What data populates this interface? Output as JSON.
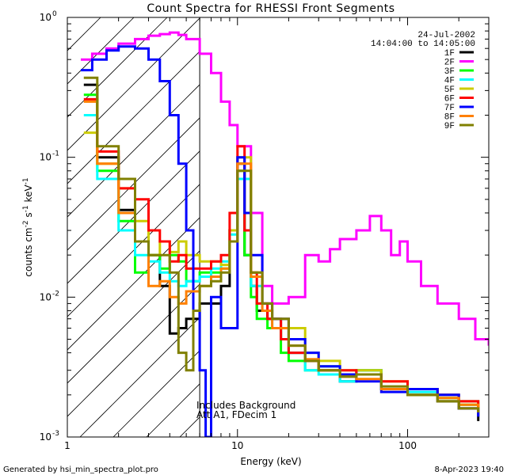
{
  "chart_data": {
    "type": "line",
    "title": "Count Spectra for RHESSI Front Segments",
    "xlabel": "Energy (keV)",
    "ylabel": "counts cm^-2 s^-1 keV^-1",
    "ylabel_parts": [
      "counts cm",
      "-2",
      " s",
      "-1",
      " keV",
      "-1"
    ],
    "xscale": "log",
    "yscale": "log",
    "xlim": [
      1,
      300
    ],
    "ylim": [
      0.001,
      1.0
    ],
    "x_ticks": [
      {
        "value": 1,
        "label": "1"
      },
      {
        "value": 10,
        "label": "10"
      },
      {
        "value": 100,
        "label": "100"
      }
    ],
    "y_ticks": [
      {
        "value": 1.0,
        "base": "10",
        "exp": "0"
      },
      {
        "value": 0.1,
        "base": "10",
        "exp": "-1"
      },
      {
        "value": 0.01,
        "base": "10",
        "exp": "-2"
      },
      {
        "value": 0.001,
        "base": "10",
        "exp": "-3"
      }
    ],
    "date": "24-Jul-2002",
    "time_range": "14:04:00 to 14:05:00",
    "attenuator_edge_keV": 6,
    "shaded_region": [
      1,
      6
    ],
    "annotations": [
      "Includes Background",
      "Att A1, FDecim 1"
    ],
    "legend_position": "top-right",
    "series": [
      {
        "name": "1F",
        "color": "#000000",
        "x": [
          1.25,
          1.5,
          2,
          2.5,
          3,
          3.5,
          4,
          4.5,
          5,
          5.5,
          6,
          7,
          8,
          9,
          10,
          11,
          12,
          13,
          15,
          18,
          20,
          25,
          30,
          40,
          50,
          70,
          100,
          150,
          200,
          260
        ],
        "y": [
          0.33,
          0.1,
          0.042,
          0.025,
          0.02,
          0.012,
          0.0055,
          0.006,
          0.007,
          0.007,
          0.009,
          0.009,
          0.012,
          0.03,
          0.09,
          0.02,
          0.012,
          0.008,
          0.007,
          0.005,
          0.004,
          0.0035,
          0.003,
          0.0025,
          0.003,
          0.0022,
          0.002,
          0.0018,
          0.0016,
          0.0013
        ]
      },
      {
        "name": "2F",
        "color": "#ff00ff",
        "x": [
          1.2,
          1.4,
          1.7,
          2,
          2.5,
          3,
          3.5,
          4,
          4.5,
          5,
          6,
          7,
          8,
          9,
          10,
          12,
          14,
          16,
          20,
          25,
          30,
          35,
          40,
          50,
          60,
          70,
          80,
          90,
          100,
          120,
          150,
          200,
          250,
          300
        ],
        "y": [
          0.5,
          0.55,
          0.6,
          0.65,
          0.7,
          0.74,
          0.76,
          0.78,
          0.75,
          0.7,
          0.55,
          0.4,
          0.25,
          0.17,
          0.12,
          0.04,
          0.012,
          0.009,
          0.01,
          0.02,
          0.018,
          0.022,
          0.026,
          0.03,
          0.038,
          0.03,
          0.02,
          0.025,
          0.018,
          0.012,
          0.009,
          0.007,
          0.005,
          0.0045
        ]
      },
      {
        "name": "3F",
        "color": "#00ff00",
        "x": [
          1.25,
          1.5,
          2,
          2.5,
          3,
          3.5,
          4,
          4.5,
          5,
          6,
          7,
          8,
          9,
          10,
          11,
          12,
          13,
          15,
          18,
          20,
          25,
          30,
          40,
          50,
          70,
          100,
          150,
          200,
          260
        ],
        "y": [
          0.28,
          0.08,
          0.035,
          0.015,
          0.02,
          0.016,
          0.02,
          0.018,
          0.013,
          0.015,
          0.015,
          0.016,
          0.03,
          0.08,
          0.02,
          0.01,
          0.007,
          0.006,
          0.004,
          0.0035,
          0.003,
          0.0032,
          0.0028,
          0.003,
          0.0022,
          0.002,
          0.0019,
          0.0017,
          0.0015
        ]
      },
      {
        "name": "4F",
        "color": "#00ffff",
        "x": [
          1.25,
          1.5,
          2,
          2.5,
          3,
          3.5,
          4,
          4.5,
          5,
          6,
          7,
          8,
          9,
          10,
          12,
          14,
          16,
          20,
          25,
          30,
          40,
          50,
          70,
          100,
          150,
          200,
          260
        ],
        "y": [
          0.2,
          0.07,
          0.03,
          0.02,
          0.018,
          0.015,
          0.013,
          0.012,
          0.013,
          0.014,
          0.016,
          0.018,
          0.028,
          0.07,
          0.012,
          0.008,
          0.006,
          0.004,
          0.003,
          0.0028,
          0.0025,
          0.003,
          0.0022,
          0.0021,
          0.002,
          0.0018,
          0.0017
        ]
      },
      {
        "name": "5F",
        "color": "#cccc00",
        "x": [
          1.25,
          1.5,
          2,
          2.5,
          3,
          3.5,
          4,
          4.5,
          5,
          6,
          7,
          8,
          9,
          10,
          12,
          14,
          16,
          20,
          25,
          30,
          40,
          50,
          70,
          100,
          150,
          200,
          260
        ],
        "y": [
          0.15,
          0.09,
          0.06,
          0.035,
          0.02,
          0.025,
          0.021,
          0.025,
          0.02,
          0.018,
          0.018,
          0.017,
          0.03,
          0.1,
          0.015,
          0.009,
          0.007,
          0.006,
          0.004,
          0.0035,
          0.003,
          0.003,
          0.0025,
          0.0022,
          0.002,
          0.0018,
          0.0016
        ]
      },
      {
        "name": "6F",
        "color": "#ff0000",
        "x": [
          1.25,
          1.5,
          2,
          2.5,
          3,
          3.5,
          4,
          4.5,
          5,
          6,
          7,
          8,
          9,
          10,
          11,
          12,
          13,
          15,
          18,
          20,
          25,
          30,
          40,
          50,
          70,
          100,
          150,
          200,
          260
        ],
        "y": [
          0.26,
          0.11,
          0.06,
          0.05,
          0.03,
          0.025,
          0.018,
          0.02,
          0.016,
          0.016,
          0.018,
          0.02,
          0.04,
          0.12,
          0.03,
          0.015,
          0.009,
          0.007,
          0.005,
          0.004,
          0.0035,
          0.003,
          0.003,
          0.0028,
          0.0025,
          0.0022,
          0.002,
          0.0018,
          0.0016
        ]
      },
      {
        "name": "7F",
        "color": "#0000ff",
        "x": [
          1.2,
          1.4,
          1.7,
          2,
          2.5,
          3,
          3.5,
          4,
          4.5,
          5,
          5.5,
          6,
          6.5,
          7,
          8,
          9,
          10,
          11,
          12,
          14,
          16,
          20,
          25,
          30,
          40,
          50,
          70,
          100,
          150,
          200,
          260
        ],
        "y": [
          0.42,
          0.5,
          0.58,
          0.62,
          0.6,
          0.5,
          0.35,
          0.2,
          0.09,
          0.03,
          0.008,
          0.003,
          0.001,
          0.01,
          0.006,
          0.006,
          0.1,
          0.04,
          0.02,
          0.009,
          0.007,
          0.005,
          0.004,
          0.0032,
          0.0028,
          0.0025,
          0.0021,
          0.0022,
          0.002,
          0.0016,
          0.0014
        ]
      },
      {
        "name": "8F",
        "color": "#ff8000",
        "x": [
          1.25,
          1.5,
          2,
          2.5,
          3,
          3.5,
          4,
          4.5,
          5,
          6,
          7,
          8,
          9,
          10,
          12,
          14,
          16,
          20,
          25,
          30,
          40,
          50,
          70,
          100,
          150,
          200,
          260
        ],
        "y": [
          0.25,
          0.09,
          0.04,
          0.025,
          0.012,
          0.013,
          0.01,
          0.009,
          0.011,
          0.012,
          0.014,
          0.016,
          0.025,
          0.09,
          0.014,
          0.008,
          0.006,
          0.0045,
          0.0036,
          0.003,
          0.0027,
          0.0026,
          0.0022,
          0.002,
          0.0019,
          0.0017,
          0.0015
        ]
      },
      {
        "name": "9F",
        "color": "#808000",
        "x": [
          1.25,
          1.5,
          2,
          2.5,
          3,
          3.5,
          4,
          4.5,
          5,
          5.5,
          6,
          7,
          8,
          9,
          10,
          12,
          14,
          16,
          20,
          25,
          30,
          40,
          50,
          70,
          100,
          150,
          200,
          260
        ],
        "y": [
          0.37,
          0.12,
          0.07,
          0.025,
          0.02,
          0.02,
          0.015,
          0.004,
          0.003,
          0.008,
          0.012,
          0.013,
          0.015,
          0.025,
          0.08,
          0.015,
          0.009,
          0.007,
          0.0045,
          0.0035,
          0.003,
          0.0027,
          0.0028,
          0.0023,
          0.002,
          0.0018,
          0.0016,
          0.0015
        ]
      }
    ]
  },
  "footer": {
    "generator": "Generated by hsi_min_spectra_plot.pro",
    "timestamp": "8-Apr-2023 19:40"
  }
}
